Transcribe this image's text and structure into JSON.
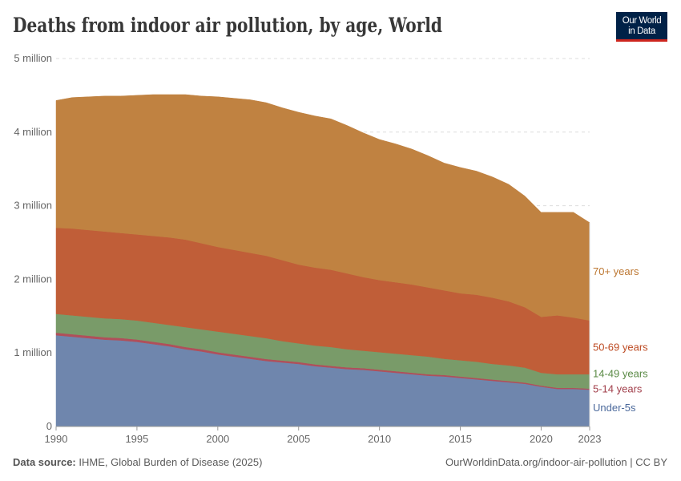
{
  "title": "Deaths from indoor air pollution, by age, World",
  "logo": {
    "line1": "Our World",
    "line2": "in Data"
  },
  "footer": {
    "source_label": "Data source:",
    "source": "IHME, Global Burden of Disease (2025)",
    "url": "OurWorldinData.org/indoor-air-pollution | CC BY"
  },
  "chart_data": {
    "type": "area",
    "stacked": true,
    "title": "Deaths from indoor air pollution, by age, World",
    "xlabel": "",
    "ylabel": "",
    "xlim": [
      1990,
      2023
    ],
    "ylim": [
      0,
      5000000
    ],
    "grid": true,
    "legend": "right-inline",
    "x_ticks": [
      1990,
      1995,
      2000,
      2005,
      2010,
      2015,
      2020,
      2023
    ],
    "x_tick_labels": [
      "1990",
      "1995",
      "2000",
      "2005",
      "2010",
      "2015",
      "2020",
      "2023"
    ],
    "y_ticks": [
      0,
      1000000,
      2000000,
      3000000,
      4000000,
      5000000
    ],
    "y_tick_labels": [
      "0",
      "1 million",
      "2 million",
      "3 million",
      "4 million",
      "5 million"
    ],
    "x": [
      1990,
      1991,
      1992,
      1993,
      1994,
      1995,
      1996,
      1997,
      1998,
      1999,
      2000,
      2001,
      2002,
      2003,
      2004,
      2005,
      2006,
      2007,
      2008,
      2009,
      2010,
      2011,
      2012,
      2013,
      2014,
      2015,
      2016,
      2017,
      2018,
      2019,
      2020,
      2021,
      2022,
      2023
    ],
    "series_value_multiplier": 1000000,
    "series": [
      {
        "name": "Under-5s",
        "color": "#6F86AD",
        "label_color": "#4C6A9C",
        "values": [
          1.24,
          1.22,
          1.2,
          1.18,
          1.17,
          1.15,
          1.12,
          1.09,
          1.05,
          1.02,
          0.98,
          0.95,
          0.92,
          0.89,
          0.87,
          0.85,
          0.82,
          0.8,
          0.78,
          0.77,
          0.75,
          0.73,
          0.71,
          0.69,
          0.68,
          0.66,
          0.64,
          0.62,
          0.6,
          0.58,
          0.54,
          0.51,
          0.51,
          0.5
        ]
      },
      {
        "name": "5-14 years",
        "color": "#B04F5A",
        "label_color": "#A13E4A",
        "values": [
          0.035,
          0.034,
          0.034,
          0.033,
          0.033,
          0.032,
          0.032,
          0.031,
          0.03,
          0.03,
          0.029,
          0.028,
          0.028,
          0.027,
          0.026,
          0.026,
          0.025,
          0.024,
          0.024,
          0.023,
          0.022,
          0.022,
          0.021,
          0.02,
          0.02,
          0.019,
          0.019,
          0.018,
          0.018,
          0.017,
          0.016,
          0.016,
          0.015,
          0.015
        ]
      },
      {
        "name": "14-49 years",
        "color": "#799B69",
        "label_color": "#5A8A45",
        "values": [
          0.255,
          0.256,
          0.256,
          0.257,
          0.257,
          0.258,
          0.258,
          0.259,
          0.27,
          0.27,
          0.281,
          0.282,
          0.282,
          0.283,
          0.264,
          0.254,
          0.255,
          0.256,
          0.246,
          0.237,
          0.238,
          0.238,
          0.239,
          0.24,
          0.22,
          0.221,
          0.221,
          0.212,
          0.212,
          0.203,
          0.174,
          0.184,
          0.185,
          0.195
        ]
      },
      {
        "name": "50-69 years",
        "color": "#C05E38",
        "label_color": "#BD4A22",
        "values": [
          1.17,
          1.18,
          1.18,
          1.18,
          1.17,
          1.17,
          1.18,
          1.19,
          1.19,
          1.17,
          1.15,
          1.14,
          1.13,
          1.12,
          1.1,
          1.07,
          1.06,
          1.05,
          1.03,
          1.0,
          0.98,
          0.97,
          0.96,
          0.94,
          0.93,
          0.91,
          0.91,
          0.9,
          0.87,
          0.82,
          0.76,
          0.8,
          0.77,
          0.73
        ]
      },
      {
        "name": "70+ years",
        "color": "#C08241",
        "label_color": "#BC7630",
        "values": [
          1.73,
          1.78,
          1.81,
          1.84,
          1.86,
          1.89,
          1.92,
          1.94,
          1.97,
          2.0,
          2.04,
          2.06,
          2.08,
          2.08,
          2.07,
          2.07,
          2.06,
          2.05,
          2.01,
          1.96,
          1.91,
          1.88,
          1.84,
          1.79,
          1.73,
          1.71,
          1.68,
          1.64,
          1.59,
          1.51,
          1.42,
          1.4,
          1.43,
          1.33
        ]
      }
    ]
  }
}
